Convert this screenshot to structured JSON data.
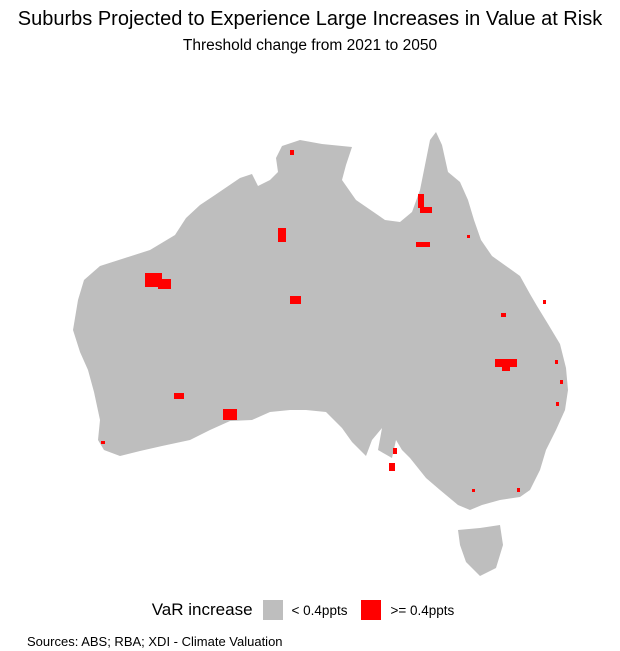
{
  "title": "Suburbs Projected to Experience Large Increases in Value at Risk",
  "subtitle": "Threshold change from 2021 to 2050",
  "legend": {
    "title": "VaR increase",
    "items": [
      {
        "label": "< 0.4ppts",
        "color": "#bebebe"
      },
      {
        "label": ">= 0.4ppts",
        "color": "#ff0000"
      }
    ]
  },
  "source": "Sources: ABS; RBA; XDI - Climate Valuation"
}
